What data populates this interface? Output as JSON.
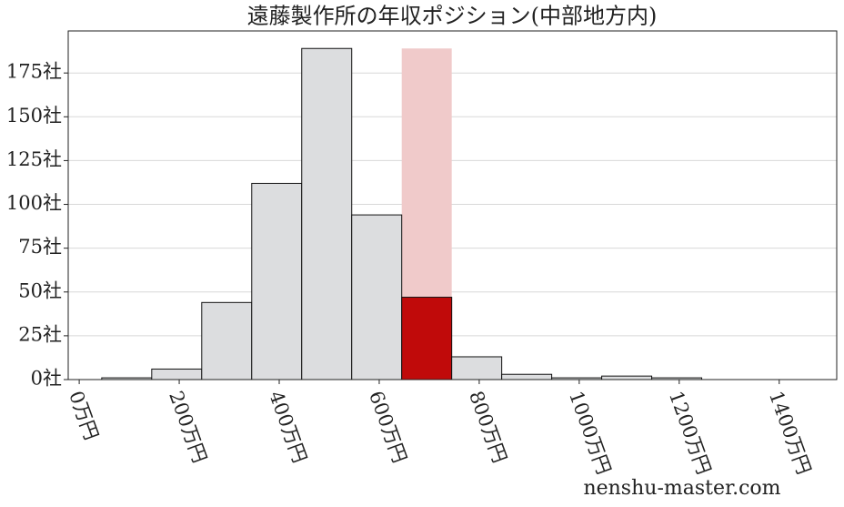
{
  "chart_data": {
    "type": "histogram",
    "title": "遠藤製作所の年収ポジション(中部地方内)",
    "bins": [
      45,
      145,
      245,
      345,
      445,
      545,
      645,
      745,
      845,
      945,
      1045,
      1145,
      1245
    ],
    "values": [
      1,
      6,
      44,
      112,
      189,
      94,
      47,
      13,
      3,
      1,
      2,
      1
    ],
    "color": "#dcdddf",
    "highlight_index": 6,
    "highlight_color": "#c00a0a",
    "highlight_band_color": "#f0caca",
    "xlim": [
      -22,
      1515
    ],
    "ylim": [
      0,
      199
    ],
    "xticks": [
      {
        "value": 0,
        "label": "0万円"
      },
      {
        "value": 200,
        "label": "200万円"
      },
      {
        "value": 400,
        "label": "400万円"
      },
      {
        "value": 600,
        "label": "600万円"
      },
      {
        "value": 800,
        "label": "800万円"
      },
      {
        "value": 1000,
        "label": "1000万円"
      },
      {
        "value": 1200,
        "label": "1200万円"
      },
      {
        "value": 1400,
        "label": "1400万円"
      }
    ],
    "yticks": [
      {
        "value": 0,
        "label": "0社"
      },
      {
        "value": 25,
        "label": "25社"
      },
      {
        "value": 50,
        "label": "50社"
      },
      {
        "value": 75,
        "label": "75社"
      },
      {
        "value": 100,
        "label": "100社"
      },
      {
        "value": 125,
        "label": "125社"
      },
      {
        "value": 150,
        "label": "150社"
      },
      {
        "value": 175,
        "label": "175社"
      }
    ],
    "grid": true,
    "watermark": "nenshu-master.com"
  }
}
